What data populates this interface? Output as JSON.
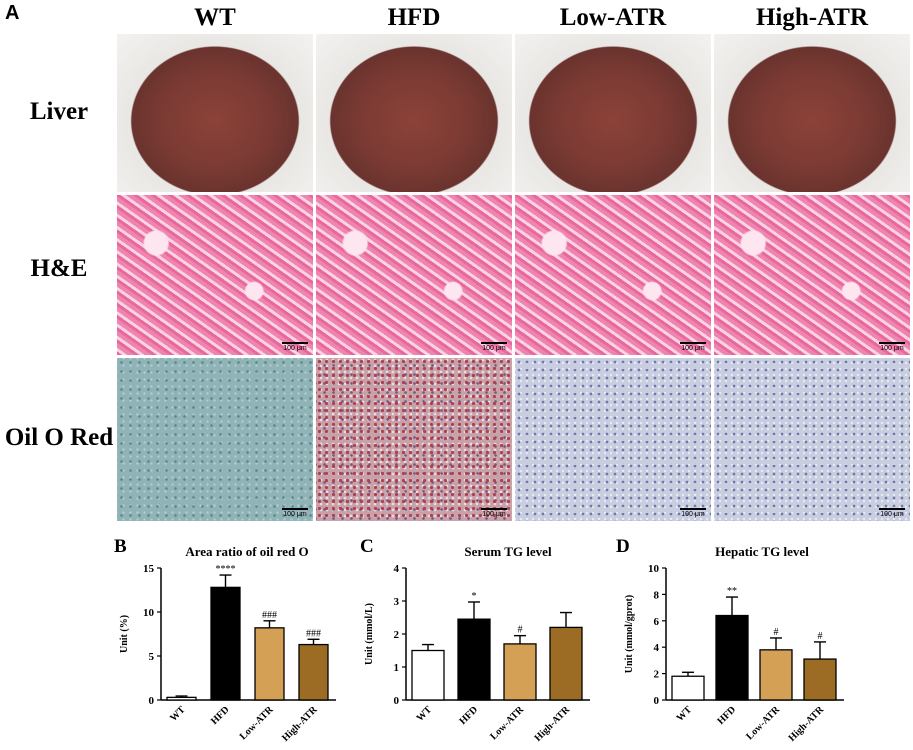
{
  "panelA": {
    "letter": "A",
    "columns": [
      "WT",
      "HFD",
      "Low-ATR",
      "High-ATR"
    ],
    "rows": [
      "Liver",
      "H&E",
      "Oil O Red"
    ],
    "scale_label": "100 μm"
  },
  "chart_data": [
    {
      "panel": "B",
      "type": "bar",
      "title": "Area ratio of oil red O",
      "ylabel": "Unit (%)",
      "xlabel": "",
      "categories": [
        "WT",
        "HFD",
        "Low-ATR",
        "High-ATR"
      ],
      "values": [
        0.3,
        12.8,
        8.2,
        6.3
      ],
      "errors": [
        0.15,
        1.4,
        0.8,
        0.6
      ],
      "annotations": [
        "",
        "****",
        "###",
        "###"
      ],
      "ylim": [
        0,
        15
      ],
      "yticks": [
        0,
        5,
        10,
        15
      ],
      "colors": [
        "#ffffff",
        "#000000",
        "#d4a055",
        "#9c6b24"
      ],
      "grid": false
    },
    {
      "panel": "C",
      "type": "bar",
      "title": "Serum TG level",
      "ylabel": "Unit (mmol/L)",
      "xlabel": "",
      "categories": [
        "WT",
        "HFD",
        "Low-ATR",
        "High-ATR"
      ],
      "values": [
        1.5,
        2.45,
        1.7,
        2.2
      ],
      "errors": [
        0.18,
        0.52,
        0.25,
        0.45
      ],
      "annotations": [
        "",
        "*",
        "#",
        ""
      ],
      "ylim": [
        0,
        4
      ],
      "yticks": [
        0,
        1,
        2,
        3,
        4
      ],
      "colors": [
        "#ffffff",
        "#000000",
        "#d4a055",
        "#9c6b24"
      ],
      "grid": false
    },
    {
      "panel": "D",
      "type": "bar",
      "title": "Hepatic TG level",
      "ylabel": "Unit (mmol/gprot)",
      "xlabel": "",
      "categories": [
        "WT",
        "HFD",
        "Low-ATR",
        "High-ATR"
      ],
      "values": [
        1.8,
        6.4,
        3.8,
        3.1
      ],
      "errors": [
        0.3,
        1.4,
        0.9,
        1.3
      ],
      "annotations": [
        "",
        "**",
        "#",
        "#"
      ],
      "ylim": [
        0,
        10
      ],
      "yticks": [
        0,
        2,
        4,
        6,
        8,
        10
      ],
      "colors": [
        "#ffffff",
        "#000000",
        "#d4a055",
        "#9c6b24"
      ],
      "grid": false
    }
  ]
}
